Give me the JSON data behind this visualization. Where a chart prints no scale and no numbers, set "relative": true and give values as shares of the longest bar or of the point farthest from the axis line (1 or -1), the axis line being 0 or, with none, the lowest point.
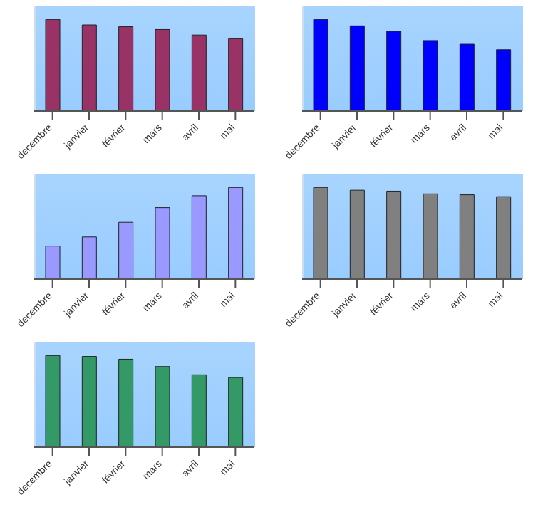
{
  "chart_data": [
    {
      "type": "bar",
      "relative": true,
      "categories": [
        "decembre",
        "janvier",
        "février",
        "mars",
        "avril",
        "mai"
      ],
      "values": [
        1,
        0.94,
        0.92,
        0.89,
        0.83,
        0.79
      ],
      "color": "#993366"
    },
    {
      "type": "bar",
      "relative": true,
      "categories": [
        "decembre",
        "janvier",
        "février",
        "mars",
        "avril",
        "mai"
      ],
      "values": [
        1,
        0.93,
        0.87,
        0.77,
        0.73,
        0.67
      ],
      "color": "#0000ff"
    },
    {
      "type": "bar",
      "relative": true,
      "categories": [
        "decembre",
        "janvier",
        "février",
        "mars",
        "avril",
        "mai"
      ],
      "values": [
        0.36,
        0.46,
        0.62,
        0.78,
        0.91,
        1
      ],
      "color": "#9999ff"
    },
    {
      "type": "bar",
      "relative": true,
      "categories": [
        "decembre",
        "janvier",
        "février",
        "mars",
        "avril",
        "mai"
      ],
      "values": [
        1,
        0.97,
        0.96,
        0.93,
        0.92,
        0.9
      ],
      "color": "#808080"
    },
    {
      "type": "bar",
      "relative": true,
      "categories": [
        "decembre",
        "janvier",
        "février",
        "mars",
        "avril",
        "mai"
      ],
      "values": [
        1,
        0.99,
        0.96,
        0.88,
        0.79,
        0.76
      ],
      "color": "#339966"
    }
  ]
}
